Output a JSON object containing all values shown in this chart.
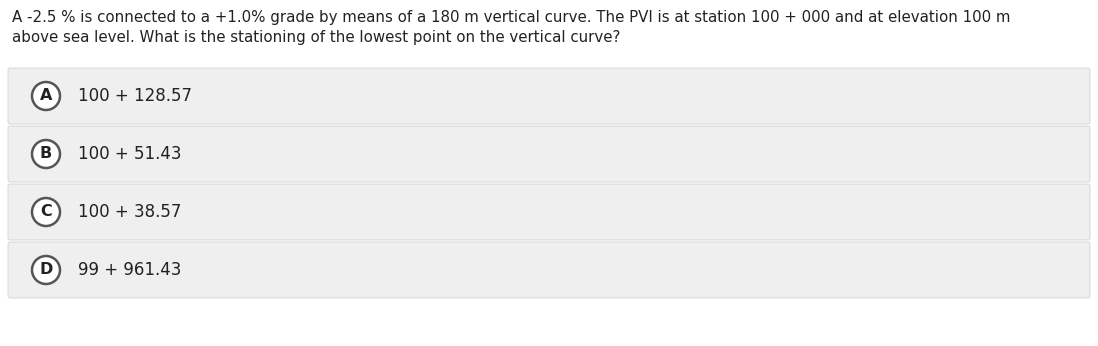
{
  "question_line1": "A -2.5 % is connected to a +1.0% grade by means of a 180 m vertical curve. The PVI is at station 100 + 000 and at elevation 100 m",
  "question_line2": "above sea level. What is the stationing of the lowest point on the vertical curve?",
  "options": [
    {
      "label": "A",
      "text": "100 + 128.57"
    },
    {
      "label": "B",
      "text": "100 + 51.43"
    },
    {
      "label": "C",
      "text": "100 + 38.57"
    },
    {
      "label": "D",
      "text": "99 + 961.43"
    }
  ],
  "background_color": "#ffffff",
  "option_bg_color": "#efefef",
  "option_border_color": "#cccccc",
  "text_color": "#222222",
  "circle_edge_color": "#555555",
  "circle_fill_color": "#ffffff",
  "question_font_size": 10.8,
  "option_font_size": 12.0,
  "label_font_size": 11.5,
  "fig_width": 10.98,
  "fig_height": 3.46,
  "dpi": 100
}
